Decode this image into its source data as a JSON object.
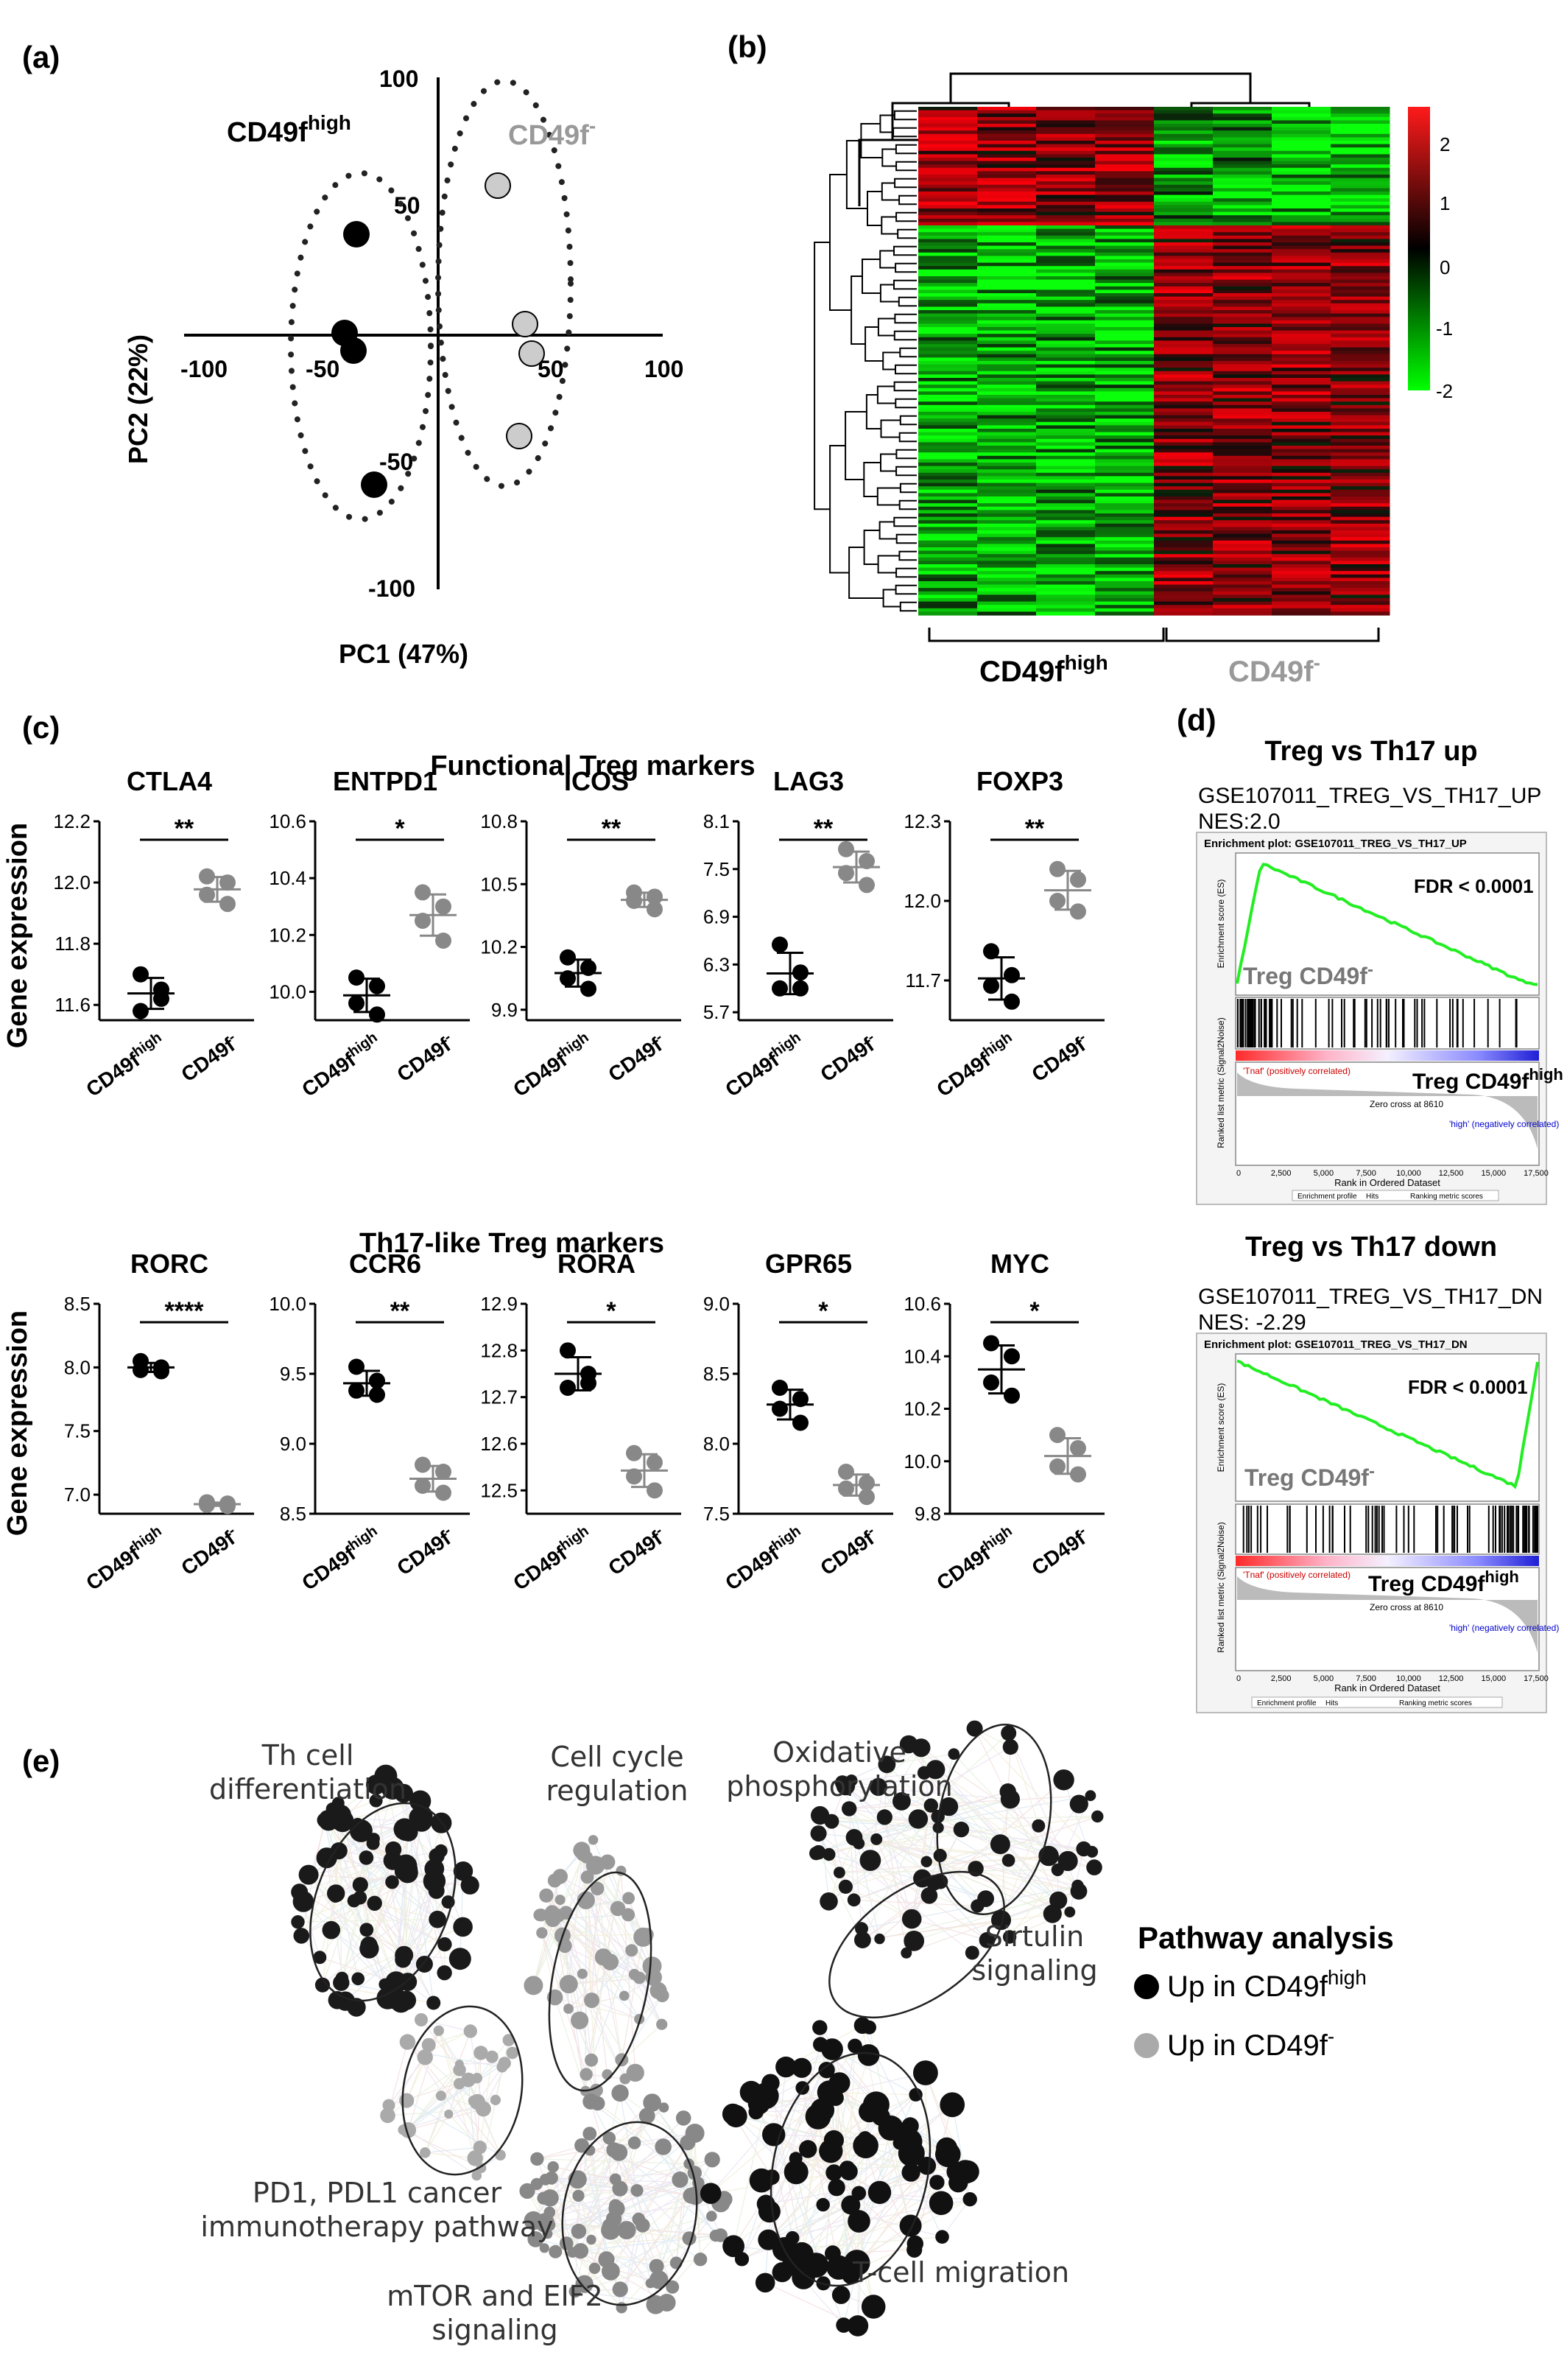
{
  "panel_labels": {
    "a": "(a)",
    "b": "(b)",
    "c": "(c)",
    "d": "(d)",
    "e": "(e)"
  },
  "pca": {
    "xlabel": "PC1 (47%)",
    "ylabel": "PC2 (22%)",
    "group_high_base": "CD49f",
    "group_high_sup": "high",
    "group_neg_base": "CD49f",
    "group_neg_sup": "-",
    "x_ticks": [
      "-100",
      "-50",
      "50",
      "100"
    ],
    "y_ticks": [
      "100",
      "50",
      "-50",
      "-100"
    ]
  },
  "heatmap": {
    "group_high_base": "CD49f",
    "group_high_sup": "high",
    "group_neg_base": "CD49f",
    "group_neg_sup": "-",
    "scale_ticks": [
      "2",
      "1",
      "0",
      "-1",
      "-2"
    ]
  },
  "boxplots": {
    "ylabel": "Gene expression",
    "functional_title": "Functional Treg markers",
    "th17_title": "Th17-like Treg markers",
    "xcat_high_base": "CD49f",
    "xcat_high_sup": "high",
    "xcat_neg_base": "CD49f",
    "xcat_neg_sup": "-"
  },
  "chart_data": [
    {
      "type": "scatter",
      "panel": "c",
      "title": "CTLA4",
      "significance": "**",
      "yticks": [
        "12.2",
        "12.0",
        "11.8",
        "11.6"
      ],
      "ylim": [
        11.55,
        12.2
      ],
      "series": [
        {
          "name": "CD49f high",
          "values": [
            11.7,
            11.65,
            11.58,
            11.62
          ]
        },
        {
          "name": "CD49f -",
          "values": [
            12.02,
            12.0,
            11.96,
            11.93
          ]
        }
      ]
    },
    {
      "type": "scatter",
      "panel": "c",
      "title": "ENTPD1",
      "significance": "*",
      "yticks": [
        "10.6",
        "10.4",
        "10.2",
        "10.0"
      ],
      "ylim": [
        9.9,
        10.6
      ],
      "series": [
        {
          "name": "CD49f high",
          "values": [
            10.05,
            10.02,
            9.96,
            9.92
          ]
        },
        {
          "name": "CD49f -",
          "values": [
            10.35,
            10.3,
            10.25,
            10.18
          ]
        }
      ]
    },
    {
      "type": "scatter",
      "panel": "c",
      "title": "ICOS",
      "significance": "**",
      "yticks": [
        "10.8",
        "10.5",
        "10.2",
        "9.9"
      ],
      "ylim": [
        9.85,
        10.8
      ],
      "series": [
        {
          "name": "CD49f high",
          "values": [
            10.15,
            10.1,
            10.05,
            10.0
          ]
        },
        {
          "name": "CD49f -",
          "values": [
            10.46,
            10.44,
            10.42,
            10.38
          ]
        }
      ]
    },
    {
      "type": "scatter",
      "panel": "c",
      "title": "LAG3",
      "significance": "**",
      "yticks": [
        "8.1",
        "7.5",
        "6.9",
        "6.3",
        "5.7"
      ],
      "ylim": [
        5.6,
        8.1
      ],
      "series": [
        {
          "name": "CD49f high",
          "values": [
            6.55,
            6.2,
            6.0,
            6.0
          ]
        },
        {
          "name": "CD49f -",
          "values": [
            7.75,
            7.6,
            7.45,
            7.3
          ]
        }
      ]
    },
    {
      "type": "scatter",
      "panel": "c",
      "title": "FOXP3",
      "significance": "**",
      "yticks": [
        "12.3",
        "12.0",
        "11.7"
      ],
      "ylim": [
        11.55,
        12.3
      ],
      "series": [
        {
          "name": "CD49f high",
          "values": [
            11.81,
            11.72,
            11.68,
            11.62
          ]
        },
        {
          "name": "CD49f -",
          "values": [
            12.12,
            12.08,
            12.0,
            11.96
          ]
        }
      ]
    },
    {
      "type": "scatter",
      "panel": "c",
      "title": "RORC",
      "significance": "****",
      "yticks": [
        "8.5",
        "8.0",
        "7.5",
        "7.0"
      ],
      "ylim": [
        6.85,
        8.5
      ],
      "series": [
        {
          "name": "CD49f high",
          "values": [
            8.05,
            8.0,
            7.98,
            7.97
          ]
        },
        {
          "name": "CD49f -",
          "values": [
            6.94,
            6.93,
            6.92,
            6.91
          ]
        }
      ]
    },
    {
      "type": "scatter",
      "panel": "c",
      "title": "CCR6",
      "significance": "**",
      "yticks": [
        "10.0",
        "9.5",
        "9.0",
        "8.5"
      ],
      "ylim": [
        8.5,
        10.0
      ],
      "series": [
        {
          "name": "CD49f high",
          "values": [
            9.55,
            9.45,
            9.38,
            9.35
          ]
        },
        {
          "name": "CD49f -",
          "values": [
            8.85,
            8.8,
            8.7,
            8.65
          ]
        }
      ]
    },
    {
      "type": "scatter",
      "panel": "c",
      "title": "RORA",
      "significance": "*",
      "yticks": [
        "12.9",
        "12.8",
        "12.7",
        "12.6",
        "12.5"
      ],
      "ylim": [
        12.45,
        12.9
      ],
      "series": [
        {
          "name": "CD49f high",
          "values": [
            12.8,
            12.75,
            12.72,
            12.73
          ]
        },
        {
          "name": "CD49f -",
          "values": [
            12.58,
            12.56,
            12.53,
            12.5
          ]
        }
      ]
    },
    {
      "type": "scatter",
      "panel": "c",
      "title": "GPR65",
      "significance": "*",
      "yticks": [
        "9.0",
        "8.5",
        "8.0",
        "7.5"
      ],
      "ylim": [
        7.5,
        9.0
      ],
      "series": [
        {
          "name": "CD49f high",
          "values": [
            8.4,
            8.32,
            8.25,
            8.15
          ]
        },
        {
          "name": "CD49f -",
          "values": [
            7.8,
            7.72,
            7.68,
            7.62
          ]
        }
      ]
    },
    {
      "type": "scatter",
      "panel": "c",
      "title": "MYC",
      "significance": "*",
      "yticks": [
        "10.6",
        "10.4",
        "10.2",
        "10.0",
        "9.8"
      ],
      "ylim": [
        9.8,
        10.6
      ],
      "series": [
        {
          "name": "CD49f high",
          "values": [
            10.45,
            10.4,
            10.3,
            10.25
          ]
        },
        {
          "name": "CD49f -",
          "values": [
            10.1,
            10.05,
            9.98,
            9.95
          ]
        }
      ]
    }
  ],
  "gsea": {
    "up": {
      "heading": "Treg vs Th17 up",
      "geneset": "GSE107011_TREG_VS_TH17_UP",
      "nes": "NES:2.0",
      "plot_title": "Enrichment plot: GSE107011_TREG_VS_TH17_UP",
      "fdr": "FDR < 0.0001",
      "label_neg_base": "Treg CD49f",
      "label_neg_sup": "-",
      "label_high_base": "Treg CD49f",
      "label_high_sup": "high"
    },
    "down": {
      "heading": "Treg vs Th17 down",
      "geneset": "GSE107011_TREG_VS_TH17_DN",
      "nes": "NES: -2.29",
      "plot_title": "Enrichment plot: GSE107011_TREG_VS_TH17_DN",
      "fdr": "FDR < 0.0001",
      "label_neg_base": "Treg CD49f",
      "label_neg_sup": "-",
      "label_high_base": "Treg CD49f",
      "label_high_sup": "high"
    },
    "es_axis": "Enrichment score (ES)",
    "rank_axis": "Ranked list metric (Signal2Noise)",
    "x_axis": "Rank in Ordered Dataset",
    "pos_label": "'Tnaf' (positively correlated)",
    "neg_label": "'high' (negatively correlated)",
    "zero_cross": "Zero cross at 8610",
    "x_ticks": [
      "0",
      "2,500",
      "5,000",
      "7,500",
      "10,000",
      "12,500",
      "15,000",
      "17,500"
    ],
    "legend": [
      "Enrichment profile",
      "Hits",
      "Ranking metric scores"
    ]
  },
  "network": {
    "clusters": {
      "th_cell": "Th cell\ndifferentiation",
      "cell_cycle": "Cell cycle\nregulation",
      "oxphos": "Oxidative\nphosphorylation",
      "sirtulin": "Sirtulin\nsignaling",
      "pd1": "PD1, PDL1 cancer\nimmunotherapy pathway",
      "mtor": "mTOR and EIF2\nsignaling",
      "tcell": "T-cell migration"
    },
    "legend_title": "Pathway analysis",
    "legend_high_base": "Up in CD49f",
    "legend_high_sup": "high",
    "legend_neg_base": "Up in CD49f",
    "legend_neg_sup": "-"
  }
}
